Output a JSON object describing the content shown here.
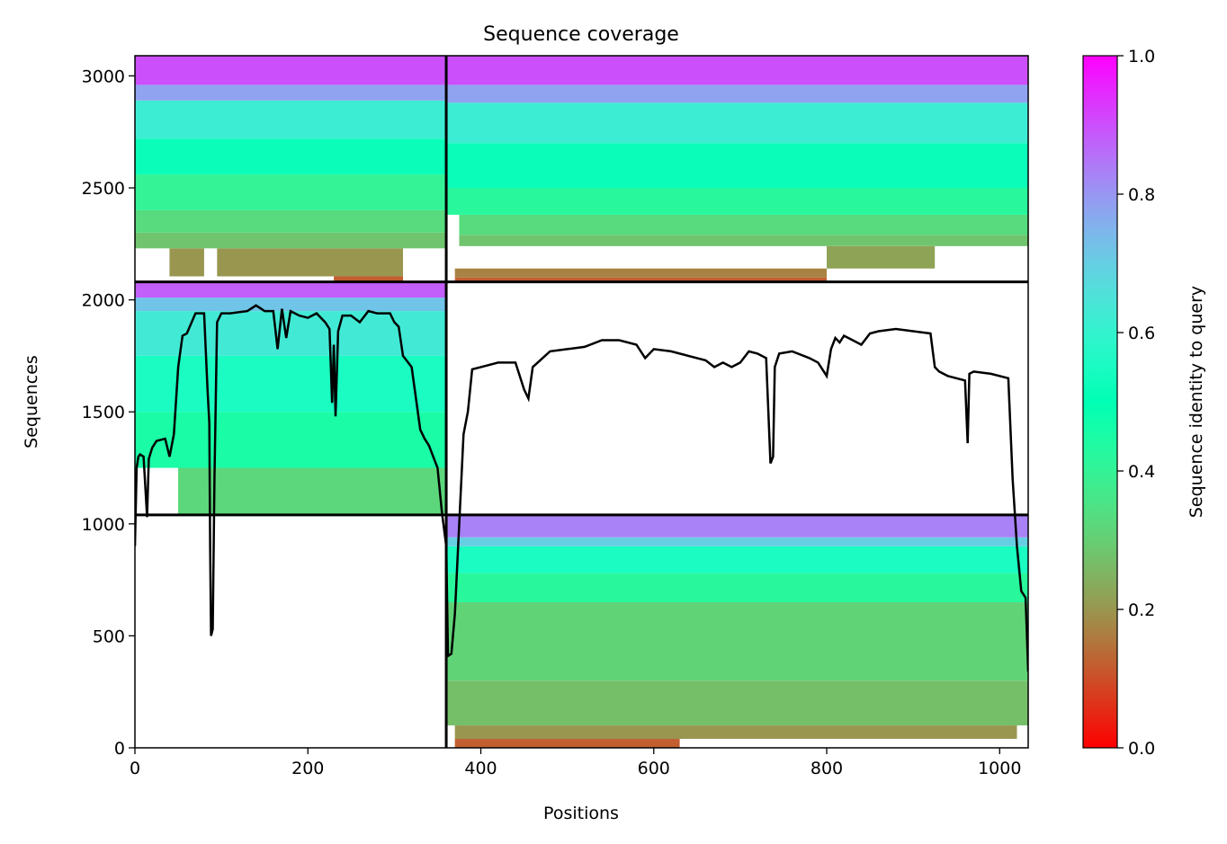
{
  "chart_data": {
    "type": "heatmap",
    "title": "Sequence coverage",
    "xlabel": "Positions",
    "ylabel": "Sequences",
    "xlim": [
      0,
      1033
    ],
    "ylim": [
      0,
      3090
    ],
    "x_ticks": [
      0,
      200,
      400,
      600,
      800,
      1000
    ],
    "y_ticks": [
      0,
      500,
      1000,
      1500,
      2000,
      2500,
      3000
    ],
    "x_tick_labels": [
      "0",
      "200",
      "400",
      "600",
      "800",
      "1000"
    ],
    "y_tick_labels": [
      "0",
      "500",
      "1000",
      "1500",
      "2000",
      "2500",
      "3000"
    ],
    "colorbar": {
      "label": "Sequence identity to query",
      "colormap": "rainbow_r",
      "range": [
        0,
        1
      ],
      "ticks": [
        0.0,
        0.2,
        0.4,
        0.6,
        0.8,
        1.0
      ],
      "tick_labels": [
        "0.0",
        "0.2",
        "0.4",
        "0.6",
        "0.8",
        "1.0"
      ]
    },
    "divider_x": [
      360
    ],
    "divider_y": [
      1040,
      2080
    ],
    "blocks": [
      {
        "name": "block-1",
        "x_range": [
          0,
          360
        ],
        "y_range": [
          1040,
          2080
        ],
        "bands": [
          {
            "y": [
              1040,
              1250
            ],
            "identity": 0.32,
            "x": [
              [
                50,
                360
              ]
            ]
          },
          {
            "y": [
              1250,
              1500
            ],
            "identity": 0.45,
            "x": [
              [
                0,
                360
              ]
            ]
          },
          {
            "y": [
              1500,
              1750
            ],
            "identity": 0.55,
            "x": [
              [
                0,
                360
              ]
            ]
          },
          {
            "y": [
              1750,
              1950
            ],
            "identity": 0.63,
            "x": [
              [
                0,
                360
              ]
            ]
          },
          {
            "y": [
              1950,
              2010
            ],
            "identity": 0.72,
            "x": [
              [
                0,
                360
              ]
            ]
          },
          {
            "y": [
              2010,
              2080
            ],
            "identity": 0.88,
            "x": [
              [
                0,
                360
              ]
            ]
          }
        ]
      },
      {
        "name": "block-2",
        "x_range": [
          0,
          360
        ],
        "y_range": [
          2080,
          3090
        ],
        "bands": [
          {
            "y": [
              2080,
              2105
            ],
            "identity": 0.12,
            "x": [
              [
                230,
                310
              ]
            ]
          },
          {
            "y": [
              2105,
              2230
            ],
            "identity": 0.2,
            "x": [
              [
                40,
                80
              ],
              [
                95,
                310
              ]
            ]
          },
          {
            "y": [
              2230,
              2300
            ],
            "identity": 0.28,
            "x": [
              [
                0,
                360
              ]
            ]
          },
          {
            "y": [
              2300,
              2400
            ],
            "identity": 0.33,
            "x": [
              [
                0,
                360
              ]
            ]
          },
          {
            "y": [
              2400,
              2560
            ],
            "identity": 0.4,
            "x": [
              [
                0,
                360
              ]
            ]
          },
          {
            "y": [
              2560,
              2720
            ],
            "identity": 0.52,
            "x": [
              [
                0,
                360
              ]
            ]
          },
          {
            "y": [
              2720,
              2890
            ],
            "identity": 0.62,
            "x": [
              [
                0,
                360
              ]
            ]
          },
          {
            "y": [
              2890,
              2960
            ],
            "identity": 0.78,
            "x": [
              [
                0,
                360
              ]
            ]
          },
          {
            "y": [
              2960,
              3090
            ],
            "identity": 0.9,
            "x": [
              [
                0,
                360
              ]
            ]
          }
        ]
      },
      {
        "name": "block-3",
        "x_range": [
          360,
          1033
        ],
        "y_range": [
          0,
          1040
        ],
        "bands": [
          {
            "y": [
              0,
              40
            ],
            "identity": 0.12,
            "x": [
              [
                370,
                630
              ]
            ]
          },
          {
            "y": [
              40,
              100
            ],
            "identity": 0.2,
            "x": [
              [
                370,
                1020
              ]
            ]
          },
          {
            "y": [
              100,
              300
            ],
            "identity": 0.27,
            "x": [
              [
                360,
                1033
              ]
            ]
          },
          {
            "y": [
              300,
              650
            ],
            "identity": 0.31,
            "x": [
              [
                360,
                1033
              ]
            ]
          },
          {
            "y": [
              650,
              780
            ],
            "identity": 0.42,
            "x": [
              [
                360,
                1033
              ]
            ]
          },
          {
            "y": [
              780,
              900
            ],
            "identity": 0.55,
            "x": [
              [
                360,
                1033
              ]
            ]
          },
          {
            "y": [
              900,
              940
            ],
            "identity": 0.7,
            "x": [
              [
                360,
                1033
              ]
            ]
          },
          {
            "y": [
              940,
              1040
            ],
            "identity": 0.83,
            "x": [
              [
                360,
                1033
              ]
            ]
          }
        ]
      },
      {
        "name": "block-4",
        "x_range": [
          360,
          1033
        ],
        "y_range": [
          2080,
          3090
        ],
        "bands": [
          {
            "y": [
              2080,
              2100
            ],
            "identity": 0.12,
            "x": [
              [
                370,
                800
              ]
            ]
          },
          {
            "y": [
              2100,
              2140
            ],
            "identity": 0.17,
            "x": [
              [
                370,
                800
              ]
            ]
          },
          {
            "y": [
              2140,
              2240
            ],
            "identity": 0.22,
            "x": [
              [
                800,
                925
              ]
            ]
          },
          {
            "y": [
              2240,
              2290
            ],
            "identity": 0.28,
            "x": [
              [
                375,
                1033
              ]
            ]
          },
          {
            "y": [
              2290,
              2380
            ],
            "identity": 0.33,
            "x": [
              [
                375,
                1033
              ]
            ]
          },
          {
            "y": [
              2380,
              2500
            ],
            "identity": 0.42,
            "x": [
              [
                360,
                1033
              ]
            ]
          },
          {
            "y": [
              2500,
              2700
            ],
            "identity": 0.52,
            "x": [
              [
                360,
                1033
              ]
            ]
          },
          {
            "y": [
              2700,
              2880
            ],
            "identity": 0.62,
            "x": [
              [
                360,
                1033
              ]
            ]
          },
          {
            "y": [
              2880,
              2960
            ],
            "identity": 0.78,
            "x": [
              [
                360,
                1033
              ]
            ]
          },
          {
            "y": [
              2960,
              3090
            ],
            "identity": 0.9,
            "x": [
              [
                360,
                1033
              ]
            ]
          }
        ]
      }
    ],
    "coverage_line": {
      "x": [
        0,
        2,
        4,
        6,
        10,
        14,
        16,
        20,
        25,
        35,
        40,
        45,
        50,
        55,
        60,
        70,
        80,
        84,
        86,
        87,
        88,
        90,
        92,
        95,
        100,
        110,
        130,
        140,
        150,
        160,
        165,
        170,
        175,
        180,
        190,
        200,
        210,
        220,
        225,
        228,
        230,
        232,
        235,
        240,
        250,
        260,
        270,
        280,
        290,
        295,
        300,
        305,
        310,
        320,
        330,
        335,
        340,
        345,
        350,
        355,
        360,
        362,
        366,
        370,
        375,
        380,
        385,
        390,
        400,
        420,
        440,
        450,
        455,
        460,
        480,
        500,
        520,
        540,
        560,
        580,
        590,
        600,
        620,
        640,
        660,
        670,
        680,
        690,
        700,
        710,
        720,
        730,
        735,
        738,
        740,
        745,
        760,
        780,
        790,
        800,
        805,
        810,
        815,
        820,
        830,
        840,
        850,
        860,
        880,
        900,
        920,
        925,
        930,
        940,
        950,
        960,
        963,
        965,
        970,
        990,
        1010,
        1015,
        1020,
        1025,
        1030,
        1033
      ],
      "y": [
        900,
        1250,
        1300,
        1310,
        1300,
        1030,
        1290,
        1340,
        1370,
        1380,
        1300,
        1400,
        1700,
        1840,
        1850,
        1940,
        1940,
        1600,
        1450,
        900,
        500,
        530,
        1200,
        1900,
        1940,
        1940,
        1950,
        1975,
        1950,
        1950,
        1780,
        1960,
        1830,
        1950,
        1930,
        1920,
        1940,
        1900,
        1870,
        1540,
        1800,
        1480,
        1860,
        1930,
        1930,
        1900,
        1950,
        1940,
        1940,
        1940,
        1900,
        1880,
        1750,
        1700,
        1420,
        1380,
        1350,
        1300,
        1250,
        1050,
        900,
        410,
        420,
        600,
        1000,
        1400,
        1500,
        1690,
        1700,
        1720,
        1720,
        1600,
        1560,
        1700,
        1770,
        1780,
        1790,
        1820,
        1820,
        1800,
        1740,
        1780,
        1770,
        1750,
        1730,
        1700,
        1720,
        1700,
        1720,
        1770,
        1760,
        1740,
        1270,
        1300,
        1700,
        1760,
        1770,
        1740,
        1720,
        1660,
        1780,
        1830,
        1810,
        1840,
        1820,
        1800,
        1850,
        1860,
        1870,
        1860,
        1850,
        1700,
        1680,
        1660,
        1650,
        1640,
        1360,
        1670,
        1680,
        1670,
        1650,
        1200,
        900,
        700,
        670,
        340
      ]
    }
  }
}
